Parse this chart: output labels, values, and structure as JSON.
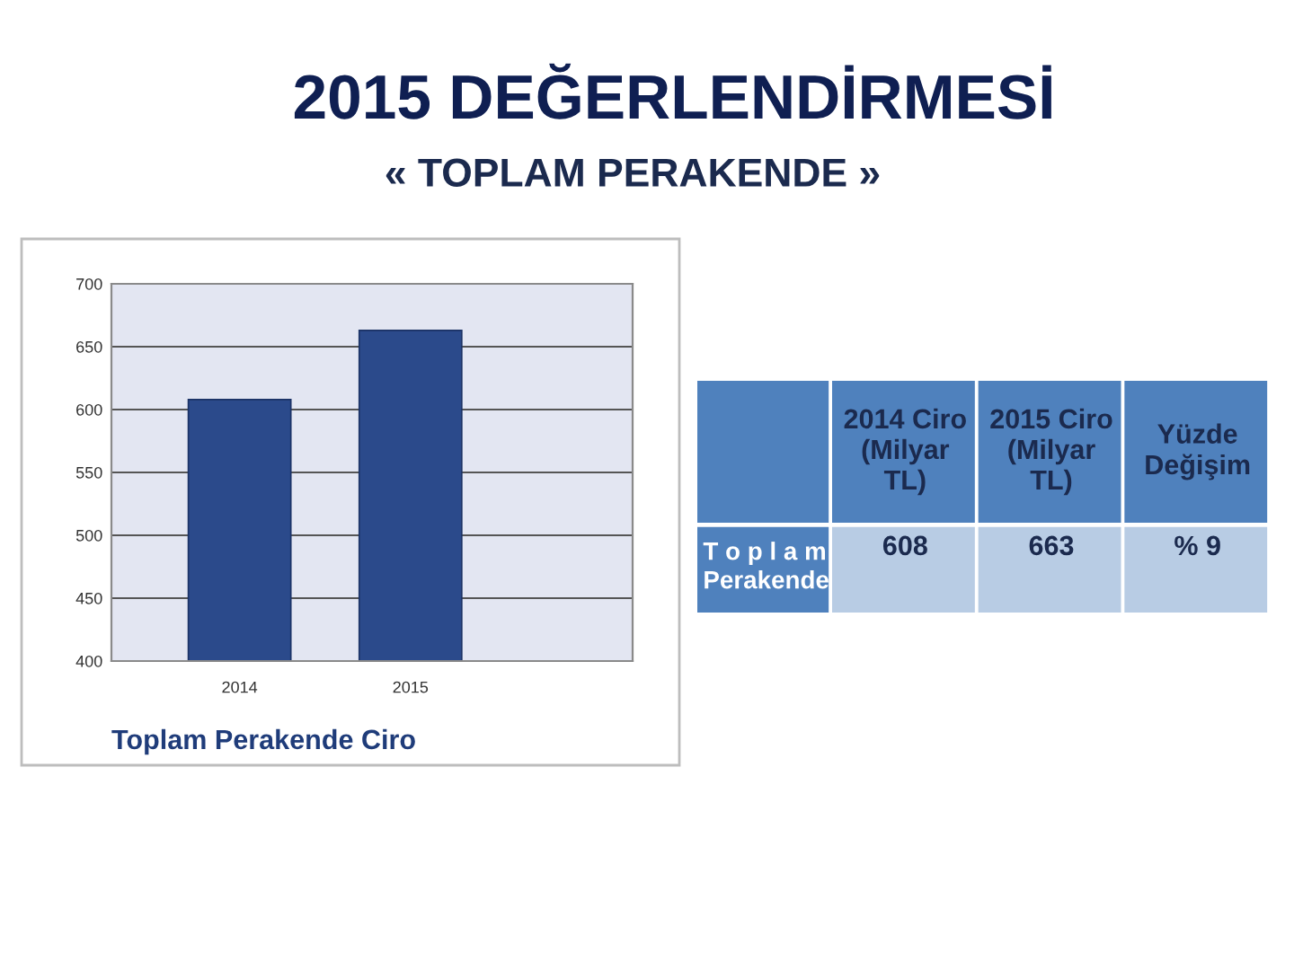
{
  "chart_data": [
    {
      "type": "bar",
      "title": "2015 DEĞERLENDİRMESİ",
      "subtitle": "« TOPLAM PERAKENDE »",
      "annotations": [
        "Toplam Perakende Ciro"
      ],
      "categories": [
        "2014",
        "2015"
      ],
      "values": [
        608,
        663
      ],
      "color": "#2b4a8b",
      "ylim": [
        400,
        700
      ],
      "yticks": [
        400,
        450,
        500,
        550,
        600,
        650,
        700
      ],
      "grid": "y"
    },
    {
      "type": "other",
      "categories": [
        "2014 Ciro\n(Milyar\nTL)",
        "2015 Ciro\n(Milyar\nTL)",
        "Yüzde\nDeğişim"
      ],
      "series": [
        {
          "name": "T o p l a m\nPerakende",
          "color": "#b8cce4",
          "values": [
            608,
            663,
            9
          ],
          "value_labels": [
            "608",
            "663",
            "% 9"
          ]
        }
      ]
    }
  ]
}
